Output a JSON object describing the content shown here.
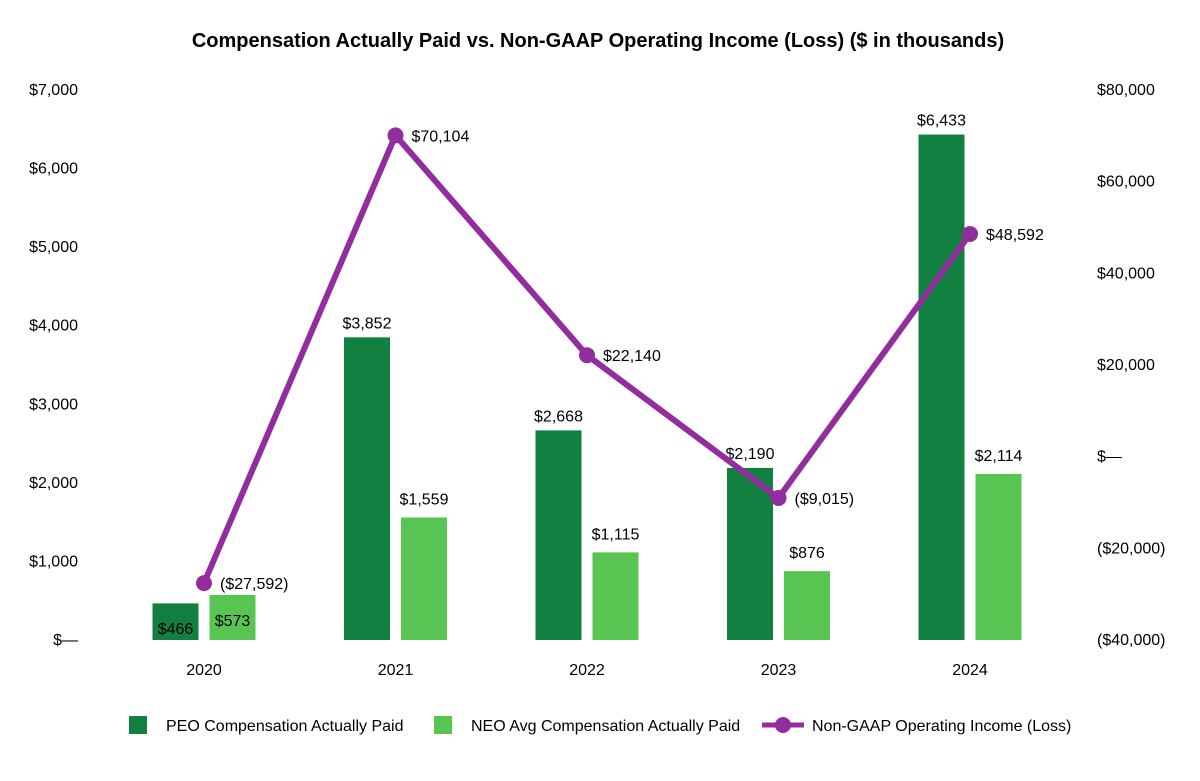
{
  "colors": {
    "peo": "#118040",
    "neo": "#58c451",
    "line": "#932c9d"
  },
  "chart_data": {
    "type": "bar",
    "title": "Compensation Actually Paid vs. Non-GAAP Operating Income (Loss) ($ in thousands)",
    "categories": [
      "2020",
      "2021",
      "2022",
      "2023",
      "2024"
    ],
    "series": [
      {
        "name": "PEO Compensation Actually Paid",
        "type": "bar",
        "axis": "left",
        "values": [
          466,
          3852,
          2668,
          2190,
          6433
        ],
        "labels": [
          "$466",
          "$3,852",
          "$2,668",
          "$2,190",
          "$6,433"
        ]
      },
      {
        "name": "NEO Avg Compensation Actually Paid",
        "type": "bar",
        "axis": "left",
        "values": [
          573,
          1559,
          1115,
          876,
          2114
        ],
        "labels": [
          "$573",
          "$1,559",
          "$1,115",
          "$876",
          "$2,114"
        ]
      },
      {
        "name": "Non-GAAP Operating Income (Loss)",
        "type": "line",
        "axis": "right",
        "values": [
          -27592,
          70104,
          22140,
          -9015,
          48592
        ],
        "labels": [
          "($27,592)",
          "$70,104",
          "$22,140",
          "($9,015)",
          "$48,592"
        ]
      }
    ],
    "y_left": {
      "ylim": [
        0,
        7000
      ],
      "ticks": [
        0,
        1000,
        2000,
        3000,
        4000,
        5000,
        6000,
        7000
      ],
      "tick_labels": [
        "$—",
        "$1,000",
        "$2,000",
        "$3,000",
        "$4,000",
        "$5,000",
        "$6,000",
        "$7,000"
      ]
    },
    "y_right": {
      "ylim": [
        -40000,
        80000
      ],
      "ticks": [
        -40000,
        -20000,
        0,
        20000,
        40000,
        60000,
        80000
      ],
      "tick_labels": [
        "($40,000)",
        "($20,000)",
        "$—",
        "$20,000",
        "$40,000",
        "$60,000",
        "$80,000"
      ]
    },
    "grid": false,
    "legend_position": "bottom"
  }
}
